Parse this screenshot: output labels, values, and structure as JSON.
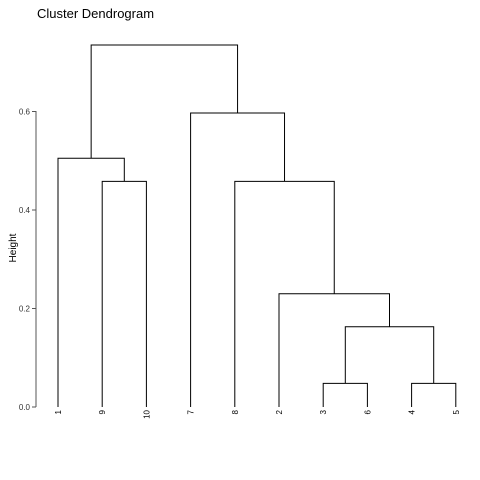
{
  "chart_data": {
    "type": "dendrogram",
    "title": "Cluster Dendrogram",
    "ylabel": "Height",
    "ylim": [
      0,
      0.75
    ],
    "yticks": [
      {
        "value": 0.0,
        "label": "0.0"
      },
      {
        "value": 0.2,
        "label": "0.2"
      },
      {
        "value": 0.4,
        "label": "0.4"
      },
      {
        "value": 0.6,
        "label": "0.6"
      }
    ],
    "leaves": [
      "1",
      "9",
      "10",
      "7",
      "8",
      "2",
      "3",
      "6",
      "4",
      "5"
    ],
    "merges": [
      {
        "id": "m1",
        "left": "3",
        "right": "6",
        "height": 0.048
      },
      {
        "id": "m2",
        "left": "4",
        "right": "5",
        "height": 0.048
      },
      {
        "id": "m3",
        "left": "m1",
        "right": "m2",
        "height": 0.163
      },
      {
        "id": "m4",
        "left": "2",
        "right": "m3",
        "height": 0.23
      },
      {
        "id": "m5",
        "left": "9",
        "right": "10",
        "height": 0.458
      },
      {
        "id": "m6",
        "left": "8",
        "right": "m4",
        "height": 0.458
      },
      {
        "id": "m7",
        "left": "1",
        "right": "m5",
        "height": 0.505
      },
      {
        "id": "m8",
        "left": "7",
        "right": "m6",
        "height": 0.597
      },
      {
        "id": "m9",
        "left": "m7",
        "right": "m8",
        "height": 0.735
      }
    ],
    "grid": false,
    "legend": "none"
  }
}
